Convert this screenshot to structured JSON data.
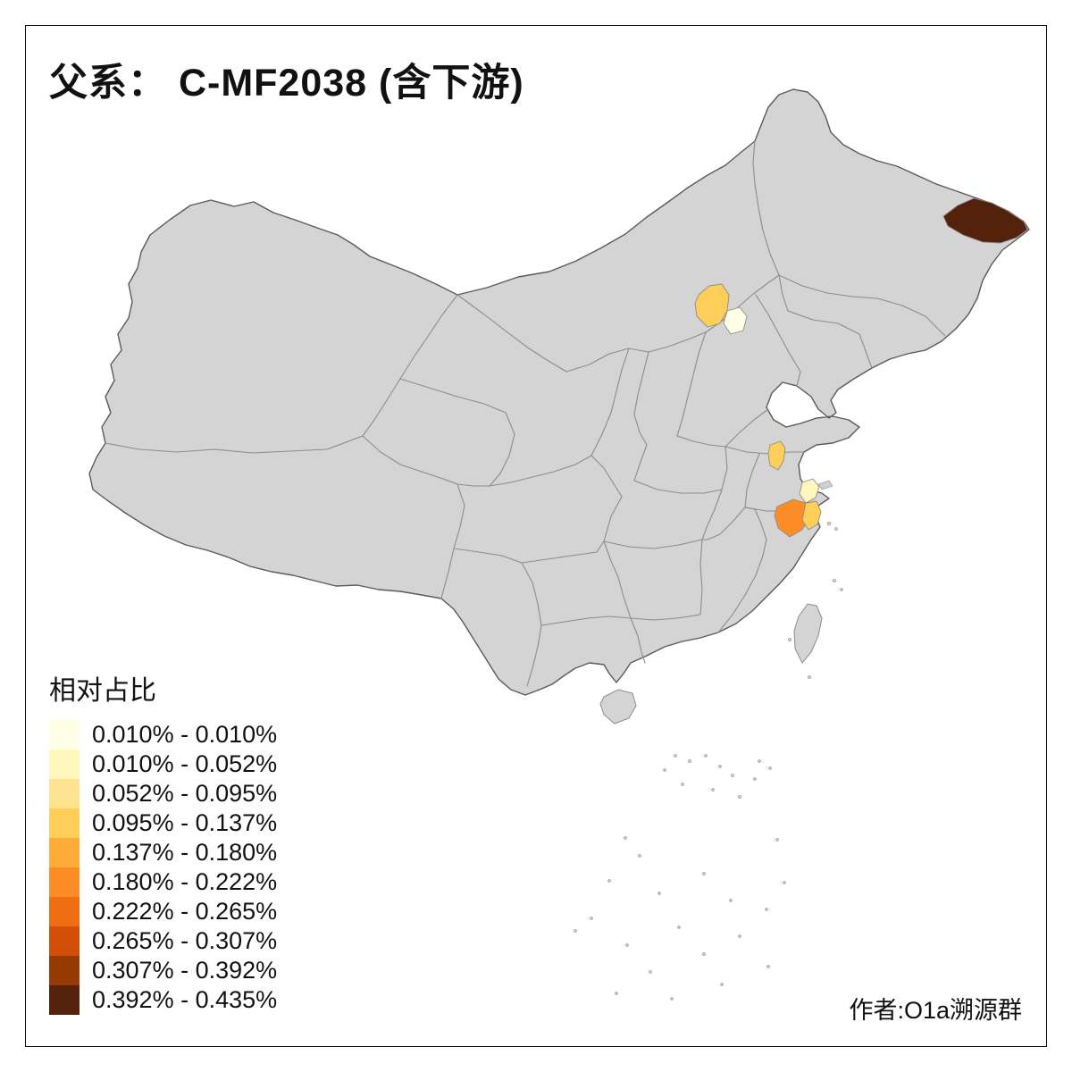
{
  "title": "父系： C-MF2038 (含下游)",
  "legend": {
    "title": "相对占比",
    "classes": [
      {
        "label": "0.010% - 0.010%",
        "color": "#FFFFE5"
      },
      {
        "label": "0.010% - 0.052%",
        "color": "#FFF7BC"
      },
      {
        "label": "0.052% - 0.095%",
        "color": "#FEE391"
      },
      {
        "label": "0.095% - 0.137%",
        "color": "#FECE59"
      },
      {
        "label": "0.137% - 0.180%",
        "color": "#FEAD3B"
      },
      {
        "label": "0.180% - 0.222%",
        "color": "#FB8C26"
      },
      {
        "label": "0.222% - 0.265%",
        "color": "#EF6E12"
      },
      {
        "label": "0.265% - 0.307%",
        "color": "#D14F06"
      },
      {
        "label": "0.307% - 0.392%",
        "color": "#963B03"
      },
      {
        "label": "0.392% - 0.435%",
        "color": "#54220B"
      }
    ]
  },
  "attribution": "作者:O1a溯源群",
  "map": {
    "land_fill": "#D4D4D4",
    "province_border": "#8C8C8C",
    "national_border": "#5A5A5A",
    "regions": [
      {
        "name": "region-northeast-dark",
        "class_index": 9
      },
      {
        "name": "region-beijing-area",
        "class_index": 3
      },
      {
        "name": "region-beijing-east-pale",
        "class_index": 0
      },
      {
        "name": "region-jiangsu-patch",
        "class_index": 3
      },
      {
        "name": "region-shanghai-pale",
        "class_index": 1
      },
      {
        "name": "region-zhejiang-orange",
        "class_index": 5
      },
      {
        "name": "region-zhejiang-coast-amber",
        "class_index": 3
      }
    ]
  }
}
